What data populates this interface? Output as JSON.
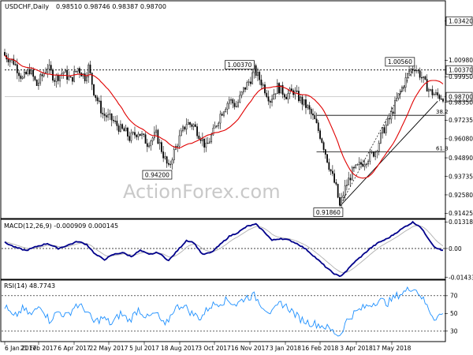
{
  "chart_data": [
    {
      "type": "candlestick",
      "title": "USDCHF,Daily",
      "ohlc": "0.98510 0.98746 0.98387 0.98700",
      "current_price": 0.987,
      "current_price_label": "0.98700",
      "ylim": [
        0.912,
        1.0385
      ],
      "y_ticks": [
        "1.03420",
        "1.00980",
        "1.00370",
        "0.99950",
        "0.98700",
        "0.98350",
        "0.97235",
        "0.96080",
        "0.94890",
        "0.93735",
        "0.92580",
        "0.91425"
      ],
      "highlighted_ticks": [
        "1.03420",
        "1.00370",
        "0.98700"
      ],
      "x_ticks": [
        "6 Jan 2017",
        "21 Feb 2017",
        "6 Apr 2017",
        "22 May 2017",
        "5 Jul 2017",
        "18 Aug 2017",
        "3 Oct 2017",
        "16 Nov 2017",
        "3 Jan 2018",
        "16 Feb 2018",
        "3 Apr 2018",
        "17 May 2018"
      ],
      "price_path": [
        [
          0,
          1.0128
        ],
        [
          5,
          1.0088
        ],
        [
          10,
          0.9981
        ],
        [
          14,
          1.0038
        ],
        [
          18,
          0.9942
        ],
        [
          24,
          1.0058
        ],
        [
          28,
          0.9982
        ],
        [
          33,
          1.0025
        ],
        [
          37,
          0.9972
        ],
        [
          41,
          1.0048
        ],
        [
          45,
          0.9992
        ],
        [
          47,
          1.0055
        ],
        [
          50,
          0.9905
        ],
        [
          55,
          0.9762
        ],
        [
          60,
          0.9728
        ],
        [
          65,
          0.9668
        ],
        [
          68,
          0.9648
        ],
        [
          70,
          0.9612
        ],
        [
          75,
          0.9652
        ],
        [
          80,
          0.9581
        ],
        [
          85,
          0.9635
        ],
        [
          89,
          0.9508
        ],
        [
          92,
          0.942
        ],
        [
          94,
          0.9498
        ],
        [
          98,
          0.9612
        ],
        [
          102,
          0.9706
        ],
        [
          106,
          0.9692
        ],
        [
          110,
          0.962
        ],
        [
          113,
          0.9552
        ],
        [
          117,
          0.9648
        ],
        [
          121,
          0.976
        ],
        [
          126,
          0.9852
        ],
        [
          130,
          0.9812
        ],
        [
          134,
          0.9912
        ],
        [
          138,
          0.998
        ],
        [
          140,
          1.0037
        ],
        [
          144,
          0.9962
        ],
        [
          149,
          0.985
        ],
        [
          153,
          0.9932
        ],
        [
          158,
          0.988
        ],
        [
          162,
          0.9905
        ],
        [
          166,
          0.985
        ],
        [
          170,
          0.98
        ],
        [
          174,
          0.972
        ],
        [
          178,
          0.96
        ],
        [
          182,
          0.944
        ],
        [
          186,
          0.93
        ],
        [
          188,
          0.9186
        ],
        [
          191,
          0.93
        ],
        [
          195,
          0.94
        ],
        [
          199,
          0.944
        ],
        [
          203,
          0.948
        ],
        [
          208,
          0.953
        ],
        [
          212,
          0.965
        ],
        [
          216,
          0.973
        ],
        [
          220,
          0.985
        ],
        [
          224,
          0.995
        ],
        [
          227,
          1.003
        ],
        [
          230,
          1.0056
        ],
        [
          233,
          1.001
        ],
        [
          236,
          0.995
        ],
        [
          239,
          0.99
        ],
        [
          242,
          0.988
        ],
        [
          245,
          0.987
        ]
      ],
      "callouts": [
        {
          "label": "1.00370",
          "at_bar": 140,
          "value": 1.0037
        },
        {
          "label": "0.94200",
          "at_bar": 92,
          "value": 0.942
        },
        {
          "label": "0.91860",
          "at_bar": 188,
          "value": 0.9186
        },
        {
          "label": "1.00560",
          "at_bar": 230,
          "value": 1.0056
        }
      ],
      "reference_line": {
        "value": 1.0037,
        "style": "dotted"
      },
      "fibonacci": [
        {
          "label": "38.2",
          "value": 0.9754
        },
        {
          "label": "61.8",
          "value": 0.9526
        }
      ],
      "moving_average_color": "#e00000",
      "watermark": "ActionForex.com"
    },
    {
      "type": "line",
      "title": "MACD(12,26,9) -0.000909 0.000145",
      "ylim": [
        -0.0145,
        0.0133
      ],
      "y_ticks": [
        "0.013184",
        "0.00",
        "-0.014339"
      ],
      "zero_line": 0.0,
      "series": [
        {
          "color": "#00008b",
          "values": [
            [
              0,
              0.003
            ],
            [
              6,
              0.0005
            ],
            [
              12,
              -0.001
            ],
            [
              18,
              0.001
            ],
            [
              24,
              0.0025
            ],
            [
              30,
              0.0
            ],
            [
              35,
              0.0015
            ],
            [
              41,
              0.0035
            ],
            [
              46,
              0.002
            ],
            [
              51,
              -0.003
            ],
            [
              56,
              -0.0055
            ],
            [
              61,
              -0.003
            ],
            [
              66,
              -0.002
            ],
            [
              71,
              -0.004
            ],
            [
              76,
              -0.001
            ],
            [
              81,
              -0.003
            ],
            [
              86,
              -0.002
            ],
            [
              92,
              -0.006
            ],
            [
              97,
              -0.001
            ],
            [
              102,
              0.004
            ],
            [
              106,
              0.003
            ],
            [
              111,
              -0.003
            ],
            [
              116,
              -0.002
            ],
            [
              121,
              0.002
            ],
            [
              126,
              0.006
            ],
            [
              131,
              0.008
            ],
            [
              136,
              0.011
            ],
            [
              141,
              0.012
            ],
            [
              146,
              0.008
            ],
            [
              150,
              0.004
            ],
            [
              155,
              0.005
            ],
            [
              160,
              0.004
            ],
            [
              165,
              0.002
            ],
            [
              170,
              -0.001
            ],
            [
              175,
              -0.005
            ],
            [
              180,
              -0.009
            ],
            [
              184,
              -0.012
            ],
            [
              188,
              -0.014
            ],
            [
              192,
              -0.011
            ],
            [
              196,
              -0.007
            ],
            [
              200,
              -0.004
            ],
            [
              205,
              0.0
            ],
            [
              210,
              0.003
            ],
            [
              215,
              0.005
            ],
            [
              220,
              0.008
            ],
            [
              225,
              0.011
            ],
            [
              229,
              0.013
            ],
            [
              233,
              0.011
            ],
            [
              237,
              0.006
            ],
            [
              241,
              0.001
            ],
            [
              245,
              -0.0009
            ]
          ]
        }
      ]
    },
    {
      "type": "line",
      "title": "RSI(14) 48.7743",
      "ylim": [
        20,
        85
      ],
      "y_ticks": [
        "70",
        "50",
        "30"
      ],
      "levels": [
        70,
        30
      ],
      "series": [
        {
          "color": "#1e90ff",
          "values": [
            [
              0,
              58
            ],
            [
              5,
              45
            ],
            [
              10,
              55
            ],
            [
              15,
              48
            ],
            [
              20,
              60
            ],
            [
              25,
              42
            ],
            [
              30,
              52
            ],
            [
              35,
              47
            ],
            [
              40,
              60
            ],
            [
              45,
              55
            ],
            [
              50,
              40
            ],
            [
              55,
              45
            ],
            [
              60,
              38
            ],
            [
              65,
              50
            ],
            [
              70,
              42
            ],
            [
              75,
              55
            ],
            [
              80,
              45
            ],
            [
              85,
              50
            ],
            [
              90,
              35
            ],
            [
              95,
              55
            ],
            [
              100,
              60
            ],
            [
              105,
              50
            ],
            [
              110,
              45
            ],
            [
              115,
              58
            ],
            [
              120,
              62
            ],
            [
              125,
              65
            ],
            [
              130,
              60
            ],
            [
              135,
              68
            ],
            [
              140,
              70
            ],
            [
              145,
              58
            ],
            [
              150,
              50
            ],
            [
              155,
              62
            ],
            [
              160,
              55
            ],
            [
              165,
              45
            ],
            [
              170,
              40
            ],
            [
              175,
              38
            ],
            [
              180,
              35
            ],
            [
              184,
              30
            ],
            [
              188,
              25
            ],
            [
              192,
              42
            ],
            [
              196,
              50
            ],
            [
              200,
              55
            ],
            [
              205,
              60
            ],
            [
              210,
              65
            ],
            [
              215,
              62
            ],
            [
              220,
              70
            ],
            [
              225,
              75
            ],
            [
              229,
              80
            ],
            [
              233,
              72
            ],
            [
              237,
              58
            ],
            [
              241,
              45
            ],
            [
              245,
              48.8
            ]
          ]
        }
      ]
    }
  ]
}
